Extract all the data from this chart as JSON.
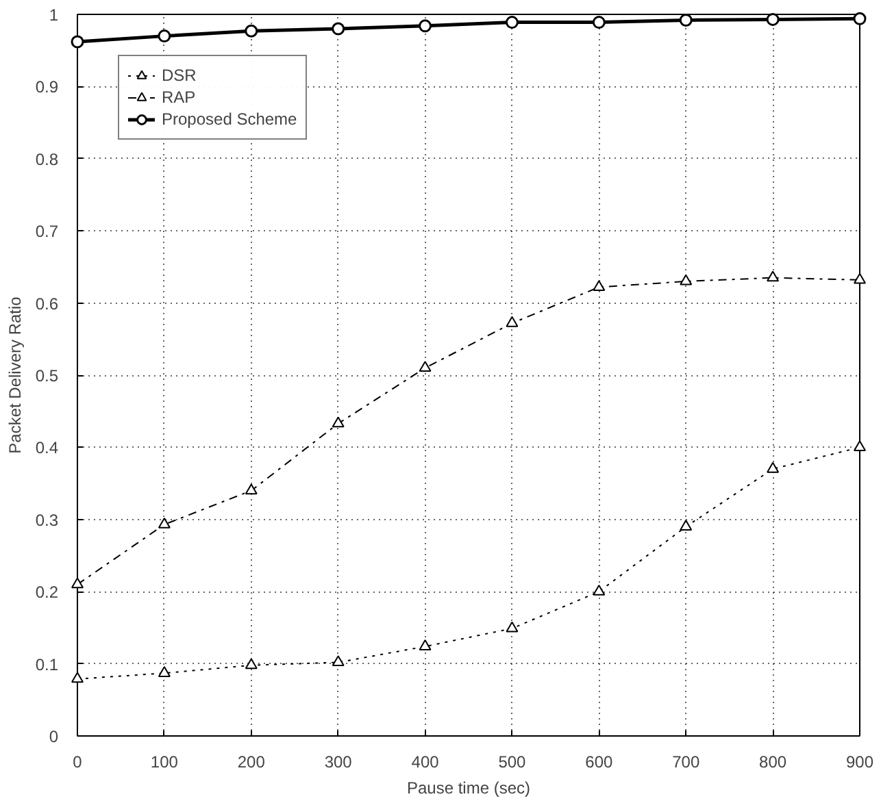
{
  "chart_data": {
    "type": "line",
    "xlabel": "Pause time (sec)",
    "ylabel": "Packet Delivery Ratio",
    "x": [
      0,
      100,
      200,
      300,
      400,
      500,
      600,
      700,
      800,
      900
    ],
    "series": [
      {
        "name": "DSR",
        "color": "#000000",
        "marker": "triangle",
        "line_style": "dotted",
        "values": [
          0.079,
          0.087,
          0.098,
          0.102,
          0.124,
          0.149,
          0.2,
          0.29,
          0.37,
          0.4
        ]
      },
      {
        "name": "RAP",
        "color": "#000000",
        "marker": "triangle",
        "line_style": "dashed",
        "values": [
          0.21,
          0.293,
          0.34,
          0.433,
          0.51,
          0.572,
          0.622,
          0.63,
          0.635,
          0.632
        ]
      },
      {
        "name": "Proposed Scheme",
        "color": "#000000",
        "marker": "circle",
        "line_style": "solid",
        "values": [
          0.962,
          0.97,
          0.977,
          0.98,
          0.984,
          0.989,
          0.989,
          0.992,
          0.993,
          0.994
        ]
      }
    ],
    "xlim": [
      0,
      900
    ],
    "xticks": [
      0,
      100,
      200,
      300,
      400,
      500,
      600,
      700,
      800,
      900
    ],
    "ylim": [
      0,
      1
    ],
    "yticks": [
      0,
      0.1,
      0.2,
      0.3,
      0.4,
      0.5,
      0.6,
      0.7,
      0.8,
      0.9,
      1
    ],
    "grid": true,
    "legend": "top left"
  }
}
